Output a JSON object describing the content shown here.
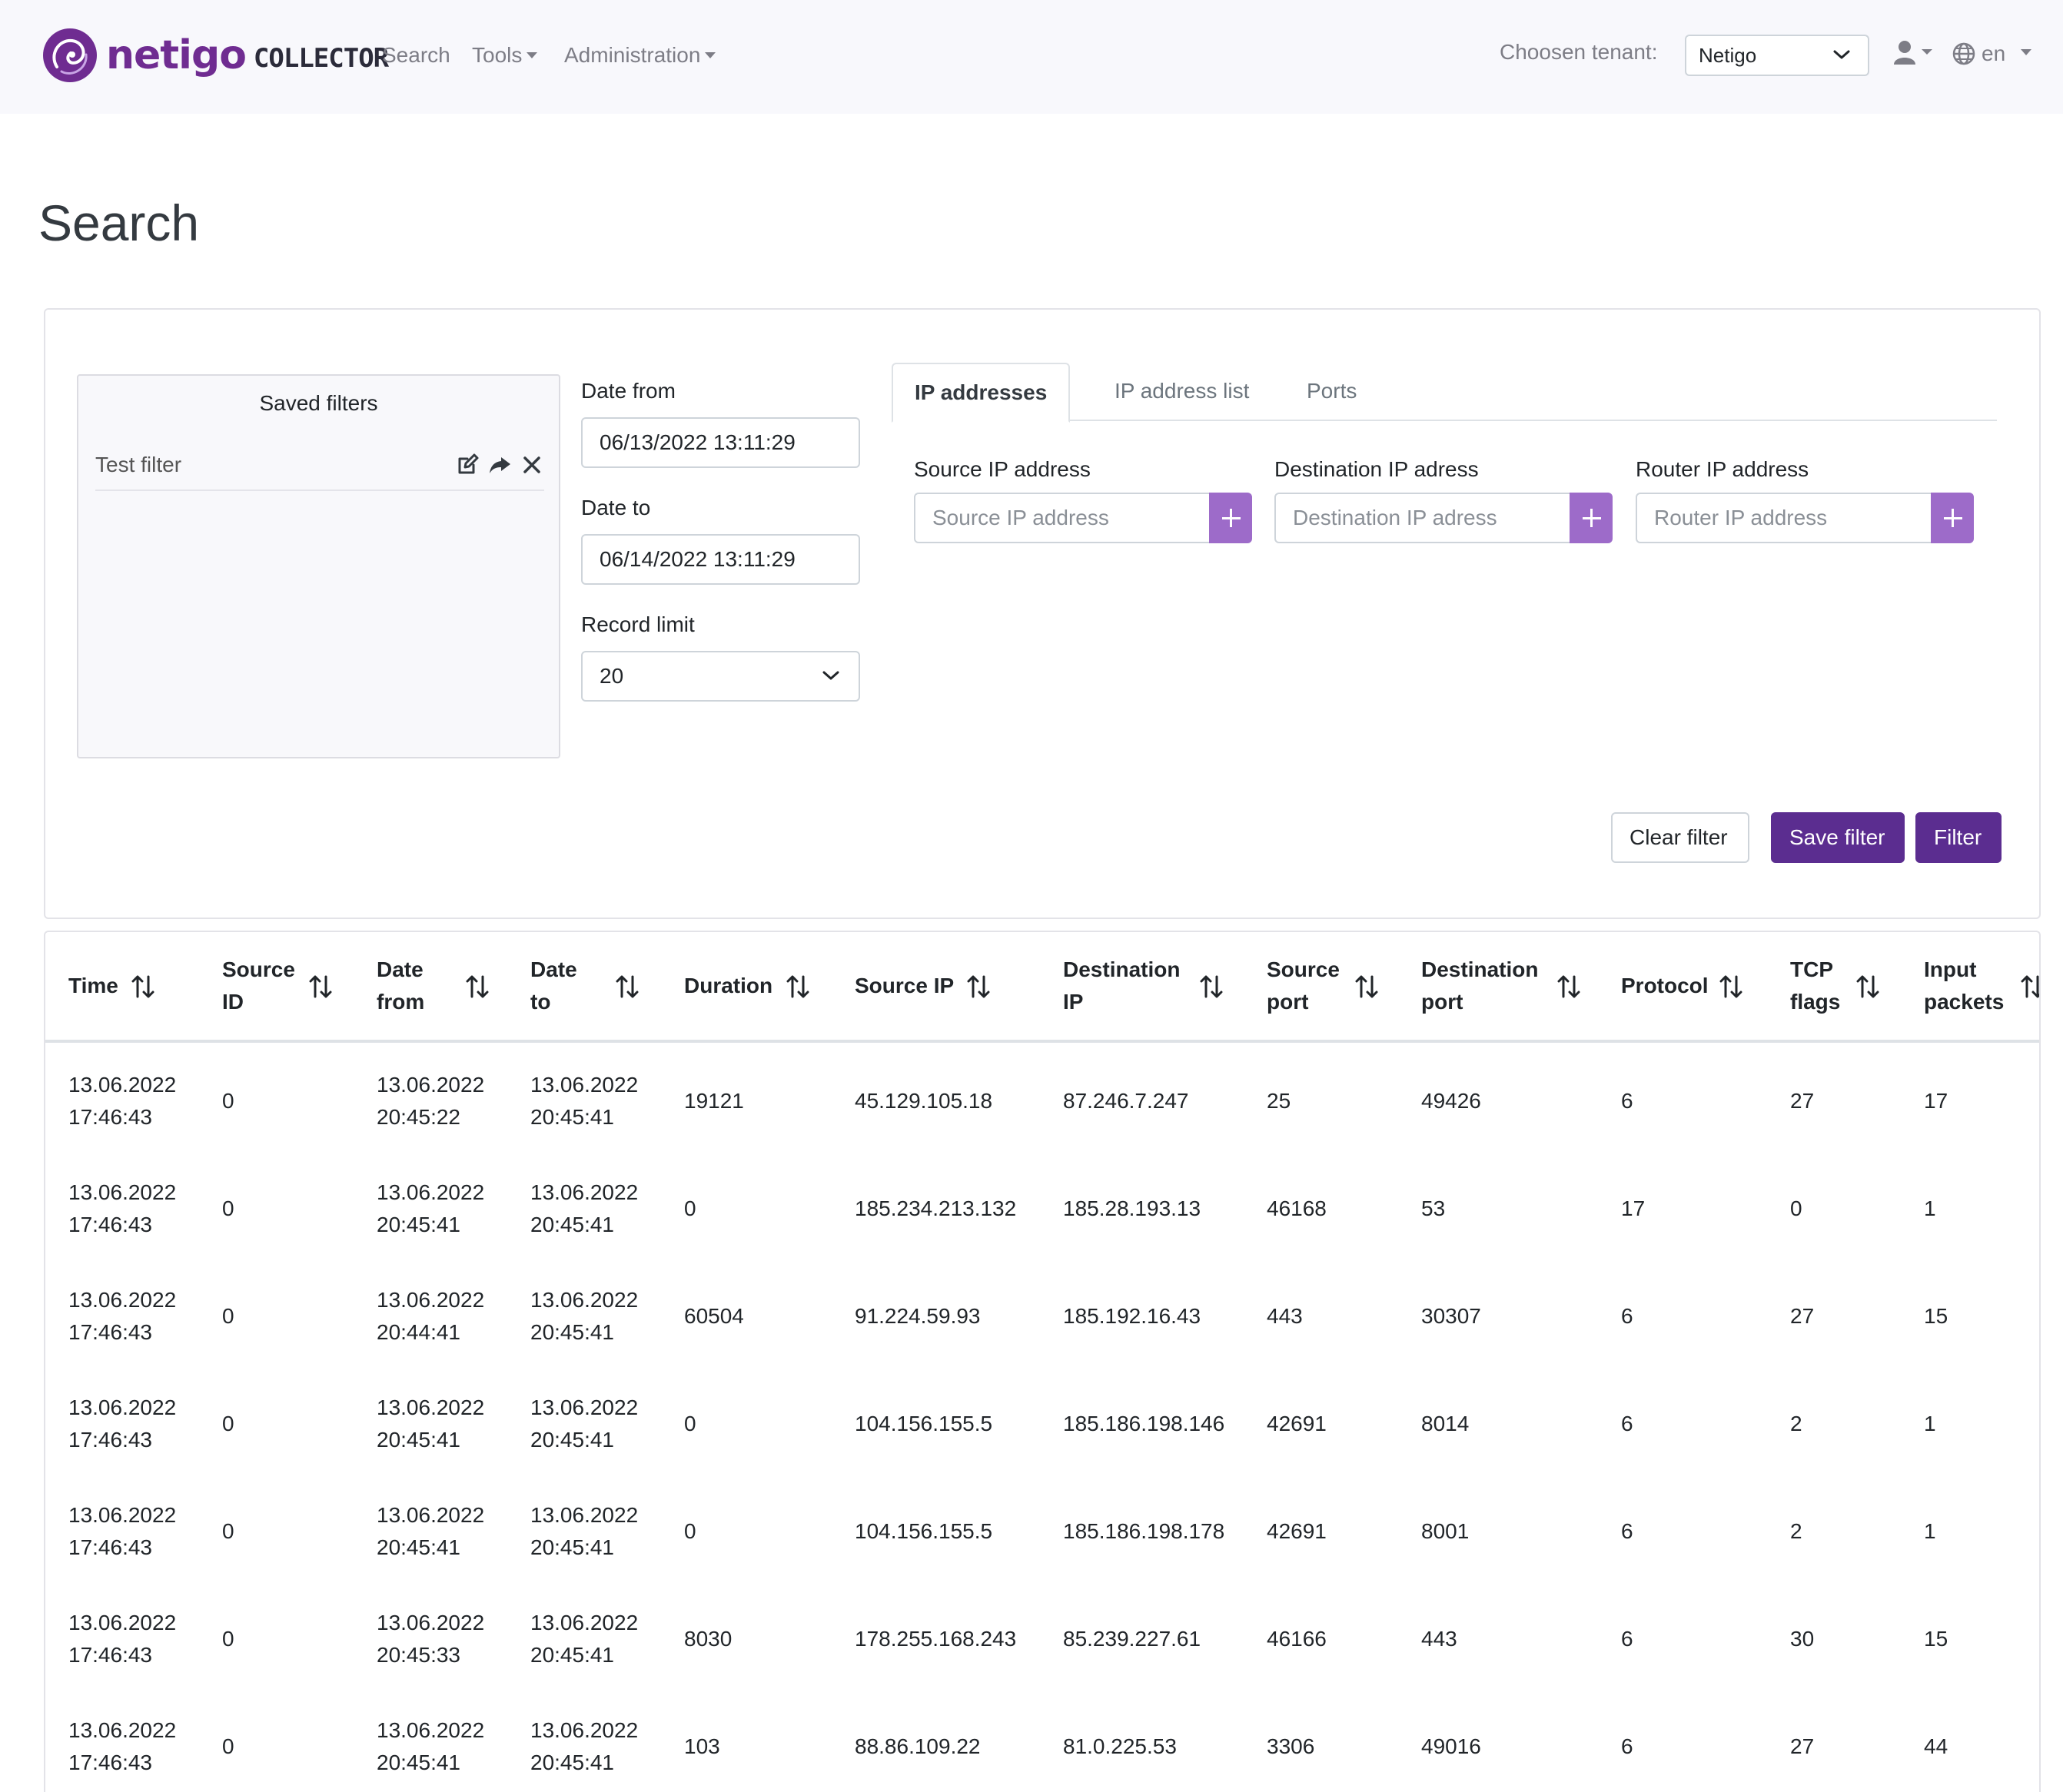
{
  "brand": {
    "name": "netigo",
    "product": "COLLECTOR"
  },
  "nav": {
    "search": "Search",
    "tools": "Tools",
    "administration": "Administration",
    "tenant_label": "Choosen tenant:",
    "tenant_value": "Netigo",
    "language": "en"
  },
  "page": {
    "title": "Search"
  },
  "saved_filters": {
    "title": "Saved filters",
    "items": [
      {
        "label": "Test filter"
      }
    ]
  },
  "form": {
    "date_from_label": "Date from",
    "date_from_value": "06/13/2022 13:11:29",
    "date_to_label": "Date to",
    "date_to_value": "06/14/2022 13:11:29",
    "record_limit_label": "Record limit",
    "record_limit_value": "20"
  },
  "tabs": [
    "IP addresses",
    "IP address list",
    "Ports"
  ],
  "ip_fields": {
    "source_label": "Source IP address",
    "source_placeholder": "Source IP address",
    "destination_label": "Destination IP adress",
    "destination_placeholder": "Destination IP adress",
    "router_label": "Router IP address",
    "router_placeholder": "Router IP address"
  },
  "buttons": {
    "clear": "Clear filter",
    "save": "Save filter",
    "filter": "Filter"
  },
  "table": {
    "columns": [
      [
        "Time"
      ],
      [
        "Source",
        "ID"
      ],
      [
        "Date",
        "from"
      ],
      [
        "Date",
        "to"
      ],
      [
        "Duration"
      ],
      [
        "Source IP"
      ],
      [
        "Destination",
        "IP"
      ],
      [
        "Source",
        "port"
      ],
      [
        "Destination",
        "port"
      ],
      [
        "Protocol"
      ],
      [
        "TCP",
        "flags"
      ],
      [
        "Input",
        "packets"
      ]
    ],
    "rows": [
      [
        [
          "13.06.2022",
          "17:46:43"
        ],
        "0",
        [
          "13.06.2022",
          "20:45:22"
        ],
        [
          "13.06.2022",
          "20:45:41"
        ],
        "19121",
        "45.129.105.18",
        "87.246.7.247",
        "25",
        "49426",
        "6",
        "27",
        "17"
      ],
      [
        [
          "13.06.2022",
          "17:46:43"
        ],
        "0",
        [
          "13.06.2022",
          "20:45:41"
        ],
        [
          "13.06.2022",
          "20:45:41"
        ],
        "0",
        "185.234.213.132",
        "185.28.193.13",
        "46168",
        "53",
        "17",
        "0",
        "1"
      ],
      [
        [
          "13.06.2022",
          "17:46:43"
        ],
        "0",
        [
          "13.06.2022",
          "20:44:41"
        ],
        [
          "13.06.2022",
          "20:45:41"
        ],
        "60504",
        "91.224.59.93",
        "185.192.16.43",
        "443",
        "30307",
        "6",
        "27",
        "15"
      ],
      [
        [
          "13.06.2022",
          "17:46:43"
        ],
        "0",
        [
          "13.06.2022",
          "20:45:41"
        ],
        [
          "13.06.2022",
          "20:45:41"
        ],
        "0",
        "104.156.155.5",
        "185.186.198.146",
        "42691",
        "8014",
        "6",
        "2",
        "1"
      ],
      [
        [
          "13.06.2022",
          "17:46:43"
        ],
        "0",
        [
          "13.06.2022",
          "20:45:41"
        ],
        [
          "13.06.2022",
          "20:45:41"
        ],
        "0",
        "104.156.155.5",
        "185.186.198.178",
        "42691",
        "8001",
        "6",
        "2",
        "1"
      ],
      [
        [
          "13.06.2022",
          "17:46:43"
        ],
        "0",
        [
          "13.06.2022",
          "20:45:33"
        ],
        [
          "13.06.2022",
          "20:45:41"
        ],
        "8030",
        "178.255.168.243",
        "85.239.227.61",
        "46166",
        "443",
        "6",
        "30",
        "15"
      ],
      [
        [
          "13.06.2022",
          "17:46:43"
        ],
        "0",
        [
          "13.06.2022",
          "20:45:41"
        ],
        [
          "13.06.2022",
          "20:45:41"
        ],
        "103",
        "88.86.109.22",
        "81.0.225.53",
        "3306",
        "49016",
        "6",
        "27",
        "44"
      ]
    ]
  },
  "colors": {
    "brand": "#6f2c91",
    "primary": "#5b2d90",
    "accent": "#9d6bc9"
  },
  "icons": {
    "logo": "swirl-logo-icon",
    "user": "user-icon",
    "globe": "globe-icon",
    "edit": "edit-icon",
    "share": "share-icon",
    "delete": "close-icon",
    "sort": "sort-icon",
    "add": "plus-icon"
  }
}
